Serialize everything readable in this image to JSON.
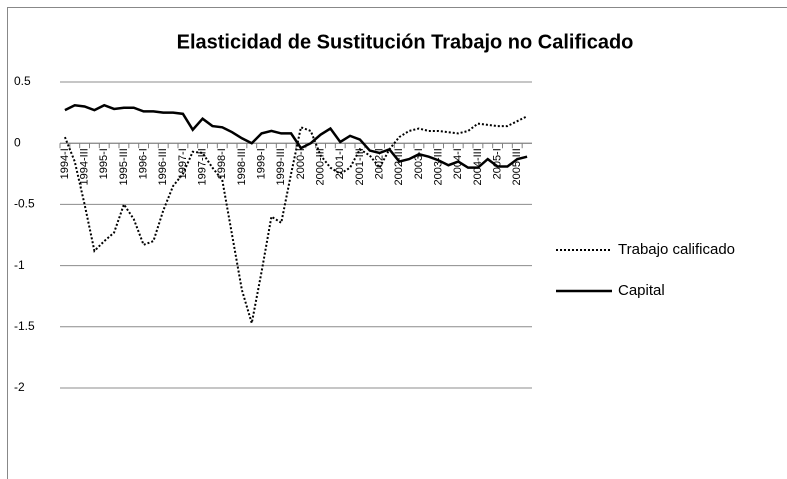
{
  "chart_data": {
    "type": "line",
    "title": "Elasticidad de Sustitución Trabajo no Calificado",
    "categories": [
      "1994-I",
      null,
      "1994-III",
      null,
      "1995-I",
      null,
      "1995-III",
      null,
      "1996-I",
      null,
      "1996-III",
      null,
      "1997-I",
      null,
      "1997-III",
      null,
      "1998-I",
      null,
      "1998-III",
      null,
      "1999-I",
      null,
      "1999-III",
      null,
      "2000-I",
      null,
      "2000-III",
      null,
      "2001-I",
      null,
      "2001-III",
      null,
      "2002-I",
      null,
      "2002-III",
      null,
      "2003-I",
      null,
      "2003-III",
      null,
      "2004-I",
      null,
      "2004-III",
      null,
      "2005-I",
      null,
      "2005-III",
      null
    ],
    "series": [
      {
        "name": "Trabajo calificado",
        "color": "#000000",
        "dash": "dotted",
        "values": [
          0.05,
          -0.15,
          -0.5,
          -0.88,
          -0.8,
          -0.73,
          -0.5,
          -0.62,
          -0.83,
          -0.8,
          -0.55,
          -0.35,
          -0.25,
          -0.07,
          -0.08,
          -0.2,
          -0.3,
          -0.75,
          -1.2,
          -1.47,
          -1.05,
          -0.6,
          -0.65,
          -0.25,
          0.13,
          0.1,
          -0.1,
          -0.2,
          -0.25,
          -0.2,
          -0.05,
          -0.1,
          -0.2,
          -0.05,
          0.05,
          0.1,
          0.12,
          0.1,
          0.1,
          0.09,
          0.08,
          0.1,
          0.16,
          0.15,
          0.14,
          0.14,
          0.18,
          0.22
        ]
      },
      {
        "name": "Capital",
        "color": "#000000",
        "dash": "solid",
        "values": [
          0.27,
          0.31,
          0.3,
          0.27,
          0.31,
          0.28,
          0.29,
          0.29,
          0.26,
          0.26,
          0.25,
          0.25,
          0.24,
          0.11,
          0.2,
          0.14,
          0.13,
          0.09,
          0.04,
          0.0,
          0.08,
          0.1,
          0.08,
          0.08,
          -0.04,
          0.0,
          0.07,
          0.12,
          0.01,
          0.06,
          0.03,
          -0.06,
          -0.08,
          -0.05,
          -0.15,
          -0.13,
          -0.09,
          -0.11,
          -0.14,
          -0.18,
          -0.15,
          -0.2,
          -0.2,
          -0.13,
          -0.19,
          -0.19,
          -0.13,
          -0.11
        ]
      }
    ],
    "ylim": [
      -2,
      0.5
    ],
    "yticks": [
      0.5,
      0,
      -0.5,
      -1,
      -1.5,
      -2
    ],
    "grid": true,
    "legend": "right"
  }
}
